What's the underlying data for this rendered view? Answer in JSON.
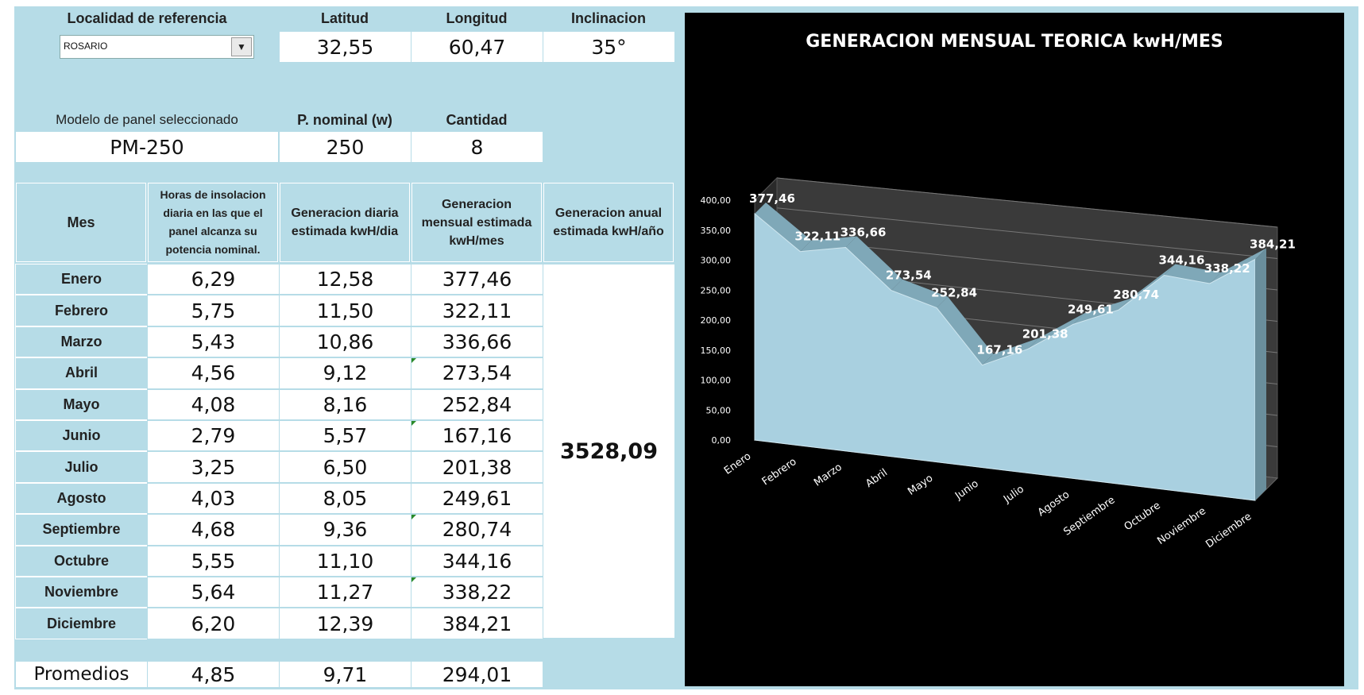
{
  "location": {
    "header_localidad": "Localidad de referencia",
    "header_latitud": "Latitud",
    "header_longitud": "Longitud",
    "header_inclinacion": "Inclinacion",
    "localidad_value": "ROSARIO",
    "latitud": "32,55",
    "longitud": "60,47",
    "inclinacion": "35°"
  },
  "panel": {
    "header_modelo": "Modelo de panel seleccionado",
    "header_nominal": "P. nominal (w)",
    "header_cantidad": "Cantidad",
    "modelo": "PM-250",
    "nominal": "250",
    "cantidad": "8"
  },
  "table": {
    "col_mes": "Mes",
    "col_horas": "Horas de insolacion diaria en las que el panel alcanza su potencia nominal.",
    "col_diaria": "Generacion diaria estimada kwH/dia",
    "col_mensual": "Generacion mensual estimada kwH/mes",
    "col_anual": "Generacion anual estimada kwH/año",
    "annual_total": "3528,09",
    "rows": [
      {
        "mes": "Enero",
        "horas": "6,29",
        "diaria": "12,58",
        "mensual": "377,46"
      },
      {
        "mes": "Febrero",
        "horas": "5,75",
        "diaria": "11,50",
        "mensual": "322,11"
      },
      {
        "mes": "Marzo",
        "horas": "5,43",
        "diaria": "10,86",
        "mensual": "336,66"
      },
      {
        "mes": "Abril",
        "horas": "4,56",
        "diaria": "9,12",
        "mensual": "273,54"
      },
      {
        "mes": "Mayo",
        "horas": "4,08",
        "diaria": "8,16",
        "mensual": "252,84"
      },
      {
        "mes": "Junio",
        "horas": "2,79",
        "diaria": "5,57",
        "mensual": "167,16"
      },
      {
        "mes": "Julio",
        "horas": "3,25",
        "diaria": "6,50",
        "mensual": "201,38"
      },
      {
        "mes": "Agosto",
        "horas": "4,03",
        "diaria": "8,05",
        "mensual": "249,61"
      },
      {
        "mes": "Septiembre",
        "horas": "4,68",
        "diaria": "9,36",
        "mensual": "280,74"
      },
      {
        "mes": "Octubre",
        "horas": "5,55",
        "diaria": "11,10",
        "mensual": "344,16"
      },
      {
        "mes": "Noviembre",
        "horas": "5,64",
        "diaria": "11,27",
        "mensual": "338,22"
      },
      {
        "mes": "Diciembre",
        "horas": "6,20",
        "diaria": "12,39",
        "mensual": "384,21"
      }
    ],
    "promedios_label": "Promedios",
    "promedio_horas": "4,85",
    "promedio_diaria": "9,71",
    "promedio_mensual": "294,01"
  },
  "chart_data": {
    "type": "area",
    "title": "GENERACION MENSUAL TEORICA  kwH/MES",
    "categories": [
      "Enero",
      "Febrero",
      "Marzo",
      "Abril",
      "Mayo",
      "Junio",
      "Julio",
      "Agosto",
      "Septiembre",
      "Octubre",
      "Noviembre",
      "Diciembre"
    ],
    "values": [
      377.46,
      322.11,
      336.66,
      273.54,
      252.84,
      167.16,
      201.38,
      249.61,
      280.74,
      344.16,
      338.22,
      384.21
    ],
    "data_labels": [
      "377,46",
      "322,11",
      "336,66",
      "273,54",
      "252,84",
      "167,16",
      "201,38",
      "249,61",
      "280,74",
      "344,16",
      "338,22",
      "384,21"
    ],
    "ylim": [
      0,
      400
    ],
    "yticks": [
      "0,00",
      "50,00",
      "100,00",
      "150,00",
      "200,00",
      "250,00",
      "300,00",
      "350,00",
      "400,00"
    ],
    "grid": true,
    "legend": "none",
    "colors": {
      "fill": "#a9d0e0",
      "background": "#000000",
      "wall": "#3a3a3a",
      "text": "#ffffff"
    }
  }
}
